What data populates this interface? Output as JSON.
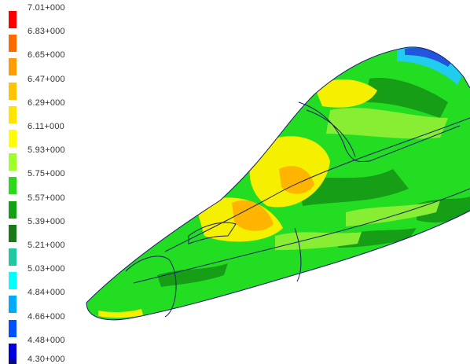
{
  "legend": {
    "entries": [
      {
        "label": "7.01+000",
        "color": "#ff0000"
      },
      {
        "label": "6.83+000",
        "color": "#ff6a00"
      },
      {
        "label": "6.65+000",
        "color": "#ff9c00"
      },
      {
        "label": "6.47+000",
        "color": "#ffc400"
      },
      {
        "label": "6.29+000",
        "color": "#ffe400"
      },
      {
        "label": "6.11+000",
        "color": "#ffff00"
      },
      {
        "label": "5.93+000",
        "color": "#9eff29"
      },
      {
        "label": "5.75+000",
        "color": "#2cd81e"
      },
      {
        "label": "5.57+000",
        "color": "#15a115"
      },
      {
        "label": "5.39+000",
        "color": "#1a7a1a"
      },
      {
        "label": "5.21+000",
        "color": "#1ec8a0"
      },
      {
        "label": "5.03+000",
        "color": "#00ffff"
      },
      {
        "label": "4.84+000",
        "color": "#00aaff"
      },
      {
        "label": "4.66+000",
        "color": "#0050ff"
      },
      {
        "label": "4.48+000",
        "color": "#0000e0"
      },
      {
        "label": "4.30+000",
        "color": "#0a0a80"
      }
    ]
  },
  "model": {
    "base_color": "#22dd22",
    "dark_band_color": "#169e16",
    "light_band_color": "#88ee33",
    "yellow_color": "#f4f000",
    "orange_color": "#ffb400",
    "cyan_color": "#22ccee",
    "blue_color": "#2255dd",
    "edge_color": "#1a1a66"
  }
}
